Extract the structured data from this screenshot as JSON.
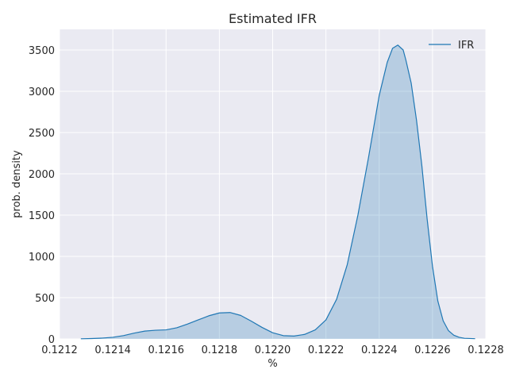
{
  "chart_data": {
    "type": "area",
    "title": "Estimated IFR",
    "xlabel": "%",
    "ylabel": "prob. density",
    "xlim": [
      0.1212,
      0.1228
    ],
    "ylim": [
      0,
      3750
    ],
    "grid": true,
    "legend_placement": "top-right",
    "x_ticks": [
      0.1212,
      0.1214,
      0.1216,
      0.1218,
      0.122,
      0.1222,
      0.1224,
      0.1226,
      0.1228
    ],
    "x_tick_labels": [
      "0.1212",
      "0.1214",
      "0.1216",
      "0.1218",
      "0.1220",
      "0.1222",
      "0.1224",
      "0.1226",
      "0.1228"
    ],
    "y_ticks": [
      0,
      500,
      1000,
      1500,
      2000,
      2500,
      3000,
      3500
    ],
    "y_tick_labels": [
      "0",
      "500",
      "1000",
      "1500",
      "2000",
      "2500",
      "3000",
      "3500"
    ],
    "series": [
      {
        "name": "IFR",
        "color": "#1f77b4",
        "fill_color": "#1f77b4",
        "x": [
          0.12128,
          0.12132,
          0.12136,
          0.1214,
          0.12144,
          0.12148,
          0.12152,
          0.12156,
          0.1216,
          0.12164,
          0.12168,
          0.12172,
          0.12176,
          0.1218,
          0.12184,
          0.12188,
          0.12192,
          0.12196,
          0.122,
          0.12204,
          0.12208,
          0.12212,
          0.12216,
          0.1222,
          0.12224,
          0.12228,
          0.12232,
          0.12236,
          0.1224,
          0.12243,
          0.12245,
          0.12247,
          0.12249,
          0.1225,
          0.12252,
          0.12254,
          0.12256,
          0.12258,
          0.1226,
          0.12262,
          0.12264,
          0.12266,
          0.12268,
          0.1227,
          0.12272,
          0.12276
        ],
        "y": [
          2,
          5,
          10,
          20,
          40,
          70,
          95,
          105,
          110,
          135,
          180,
          230,
          280,
          315,
          320,
          285,
          215,
          140,
          75,
          40,
          35,
          55,
          110,
          230,
          480,
          900,
          1500,
          2200,
          2950,
          3350,
          3520,
          3560,
          3500,
          3380,
          3100,
          2650,
          2100,
          1450,
          880,
          460,
          220,
          100,
          45,
          20,
          8,
          3
        ]
      }
    ]
  }
}
